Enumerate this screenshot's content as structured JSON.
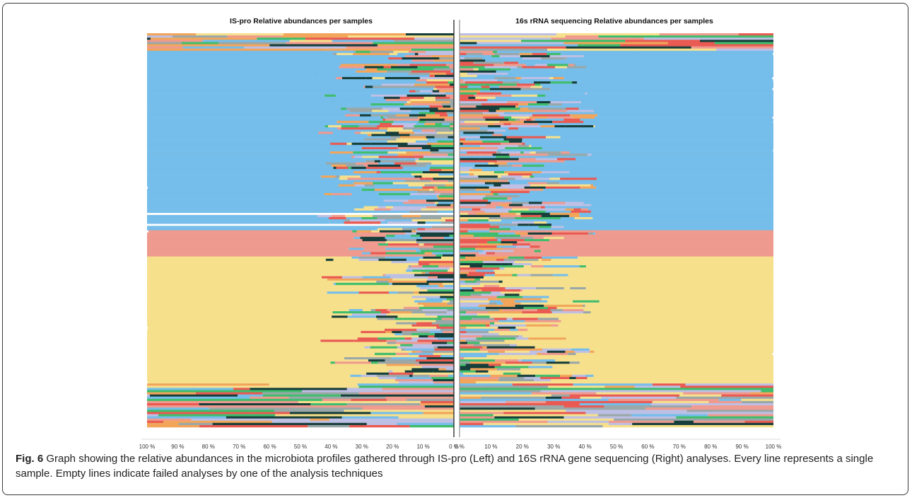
{
  "chart_data": {
    "type": "bar",
    "orientation": "horizontal",
    "stacked": true,
    "layout": "mirrored",
    "panels": [
      {
        "title": "IS-pro Relative abundances per samples",
        "direction": "right-to-left",
        "xlim": [
          0,
          100
        ],
        "tick_labels": [
          "100 %",
          "90 %",
          "80 %",
          "70 %",
          "60 %",
          "50 %",
          "40 %",
          "30 %",
          "20 %",
          "10 %",
          "0 %"
        ]
      },
      {
        "title": "16s rRNA sequencing Relative abundances per samples",
        "direction": "left-to-right",
        "xlim": [
          0,
          100
        ],
        "tick_labels": [
          "0 %",
          "10 %",
          "20 %",
          "30 %",
          "40 %",
          "50 %",
          "60 %",
          "70 %",
          "80 %",
          "90 %",
          "100 %"
        ]
      }
    ],
    "samples_count": 180,
    "failed_rows": {
      "IS-pro": [
        82,
        87
      ]
    },
    "dominant_taxa_color_order": [
      "#75bdea",
      "#f6e08c",
      "#ef9a8e",
      "#bdbfe4",
      "#3fbd6c",
      "#163e3a",
      "#f2a55a",
      "#e95a52",
      "#9aa7a8"
    ],
    "sections": [
      {
        "rows": 8,
        "IS-pro": "mixed",
        "16s": "mixed"
      },
      {
        "rows": 82,
        "IS-pro": "#75bdea",
        "16s": "#75bdea"
      },
      {
        "rows": 12,
        "IS-pro": "#ef9a8e",
        "16s": "#ef9a8e"
      },
      {
        "rows": 58,
        "IS-pro": "#f6e08c",
        "16s": "#f6e08c"
      },
      {
        "rows": 20,
        "IS-pro": "mixed",
        "16s": "mixed"
      }
    ]
  },
  "caption": {
    "label": "Fig. 6",
    "text": " Graph showing the relative abundances in the microbiota profiles gathered through IS-pro (Left) and 16S rRNA gene sequencing (Right) analyses. Every line represents a single sample. Empty lines indicate failed analyses by one of the analysis techniques"
  }
}
